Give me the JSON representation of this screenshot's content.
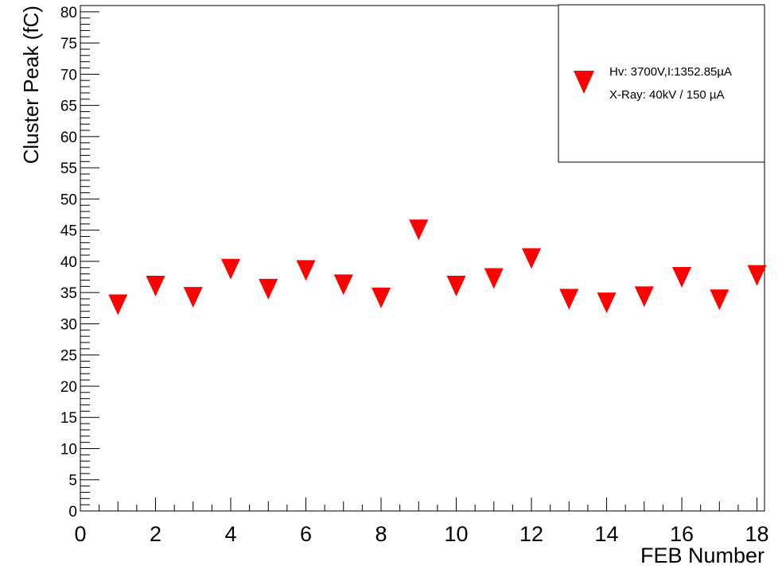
{
  "chart_data": {
    "type": "scatter",
    "title": "",
    "xlabel": "FEB Number",
    "ylabel": "Cluster Peak (fC)",
    "xlim": [
      0,
      18.2
    ],
    "ylim": [
      0,
      81
    ],
    "x_ticks": [
      "0",
      "2",
      "4",
      "6",
      "8",
      "10",
      "12",
      "14",
      "16",
      "18"
    ],
    "y_ticks": [
      "0",
      "5",
      "10",
      "15",
      "20",
      "25",
      "30",
      "35",
      "40",
      "45",
      "50",
      "55",
      "60",
      "65",
      "70",
      "75",
      "80"
    ],
    "grid": false,
    "legend": {
      "position": "top-right",
      "lines": [
        "Hv: 3700V,I:1352.85µA",
        "X-Ray: 40kV / 150 µA"
      ]
    },
    "marker": "inverted-triangle",
    "marker_color": "#ff0000",
    "series": [
      {
        "x": [
          1,
          2,
          3,
          4,
          5,
          6,
          7,
          8,
          9,
          10,
          11,
          12,
          13,
          14,
          15,
          16,
          17,
          18
        ],
        "y": [
          33.3,
          36.3,
          34.5,
          39.0,
          35.8,
          38.8,
          36.5,
          34.4,
          45.3,
          36.3,
          37.5,
          40.7,
          34.2,
          33.6,
          34.6,
          37.7,
          34.1,
          38.0
        ]
      }
    ]
  }
}
